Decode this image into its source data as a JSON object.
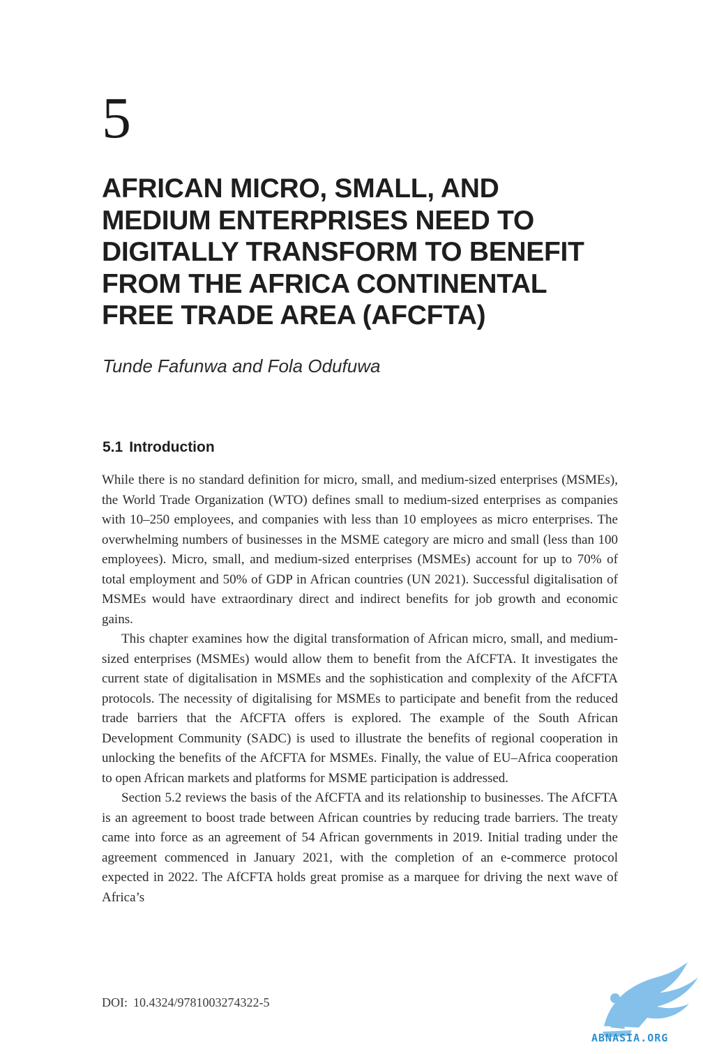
{
  "chapter": {
    "number": "5",
    "title_lines": [
      "AFRICAN MICRO, SMALL, AND",
      "MEDIUM ENTERPRISES NEED TO",
      "DIGITALLY TRANSFORM TO BENEFIT",
      "FROM THE AFRICA CONTINENTAL",
      "FREE TRADE AREA (AFCFTA)"
    ],
    "authors": "Tunde Fafunwa and Fola Odufuwa"
  },
  "section": {
    "number": "5.1",
    "title": "Introduction"
  },
  "paragraphs": [
    "While there is no standard definition for micro, small, and medium-sized enterprises (MSMEs), the World Trade Organization (WTO) defines small to medium-sized enterprises as companies with 10–250 employees, and companies with less than 10 employees as micro enterprises. The overwhelming numbers of businesses in the MSME category are micro and small (less than 100 employees). Micro, small, and medium-sized enterprises (MSMEs) account for up to 70% of total employment and 50% of GDP in African countries (UN 2021). Successful digitalisation of MSMEs would have extraordinary direct and indirect benefits for job growth and economic gains.",
    "This chapter examines how the digital transformation of African micro, small, and medium-sized enterprises (MSMEs) would allow them to benefit from the AfCFTA. It investigates the current state of digitalisation in MSMEs and the sophistication and complexity of the AfCFTA protocols. The necessity of digitalising for MSMEs to participate and benefit from the reduced trade barriers that the AfCFTA offers is explored. The example of the South African Development Community (SADC) is used to illustrate the benefits of regional cooperation in unlocking the benefits of the AfCFTA for MSMEs. Finally, the value of EU–Africa cooperation to open African markets and platforms for MSME participation is addressed.",
    "Section 5.2 reviews the basis of the AfCFTA and its relationship to businesses. The AfCFTA is an agreement to boost trade between African countries by reducing trade barriers. The treaty came into force as an agreement of 54 African governments in 2019. Initial trading under the agreement commenced in January 2021, with the completion of an e-commerce protocol expected in 2022. The AfCFTA holds great promise as a marquee for driving the next wave of Africa’s"
  ],
  "footer": {
    "doi_label": "DOI:",
    "doi_value": "10.4324/9781003274322-5"
  },
  "watermark": {
    "text": "ABNASIA.ORG",
    "color": "#2d8fd0"
  }
}
